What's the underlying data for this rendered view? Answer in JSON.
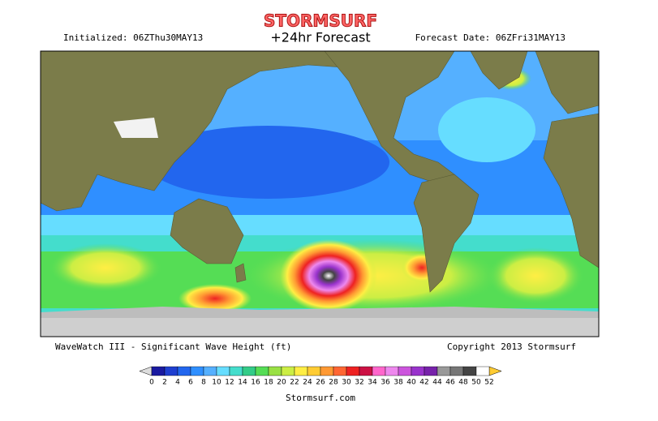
{
  "header": {
    "logo": "STORMSURF",
    "title": "+24hr Forecast",
    "initialized": "Initialized: 06ZThu30MAY13",
    "forecast_date": "Forecast Date: 06ZFri31MAY13"
  },
  "footer": {
    "model": "WaveWatch III - Significant Wave Height (ft)",
    "copyright": "Copyright 2013 Stormsurf",
    "site": "Stormsurf.com"
  },
  "legend": {
    "ticks": [
      0,
      2,
      4,
      6,
      8,
      10,
      12,
      14,
      16,
      18,
      20,
      22,
      24,
      26,
      28,
      30,
      32,
      34,
      36,
      38,
      40,
      42,
      44,
      46,
      48,
      50,
      52
    ],
    "colors": [
      "#1a1aa0",
      "#1f3fd0",
      "#2266ee",
      "#2f8fff",
      "#55b0ff",
      "#66ddff",
      "#44ddcc",
      "#33cc88",
      "#55dd55",
      "#99e044",
      "#ccee44",
      "#ffee44",
      "#ffcc33",
      "#ff9933",
      "#ff6633",
      "#ee2222",
      "#cc1144",
      "#ff66cc",
      "#ee88ee",
      "#cc55dd",
      "#9933cc",
      "#7722aa",
      "#999999",
      "#777777",
      "#444444",
      "#ffffff"
    ],
    "under_color": "#dddddd",
    "over_color": "#ffcc33"
  }
}
